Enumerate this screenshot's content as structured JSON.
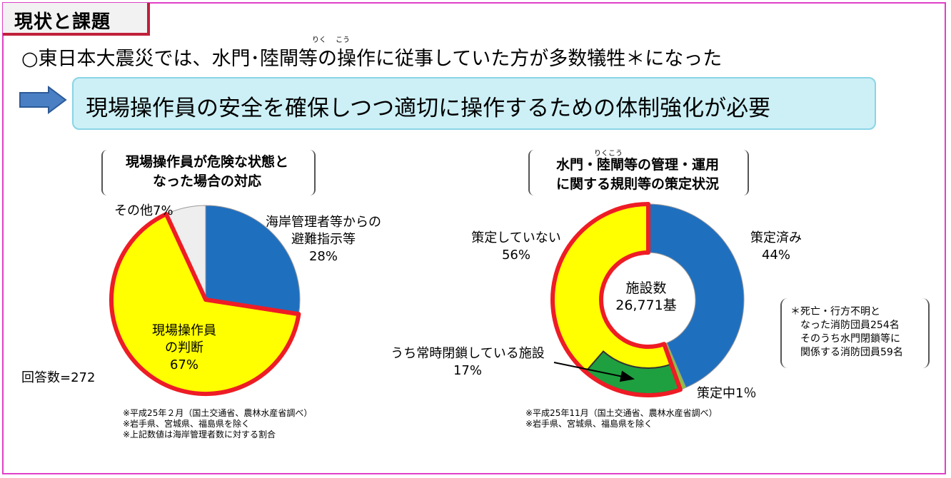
{
  "header": {
    "title": "現状と課題",
    "headline": "○東日本大震災では、水門･陸閘等の操作に従事していた方が多数犠牲＊になった",
    "ruby_riku": "りく",
    "ruby_kou": "こう",
    "callout": "現場操作員の安全を確保しつつ適切に操作するための体制強化が必要"
  },
  "colors": {
    "blue": "#1f6fbf",
    "yellow": "#ffff00",
    "light_gray": "#eeeeee",
    "green": "#1fa040",
    "highlight_red": "#ee1c25",
    "callout_bg": "#ccf0f6",
    "arrow": "#4a7fc4"
  },
  "chart_data": [
    {
      "type": "pie",
      "title_line1": "現場操作員が危険な状態と",
      "title_line2": "なった場合の対応",
      "slices": [
        {
          "label_line1": "海岸管理者等からの",
          "label_line2": "避難指示等",
          "pct_label": "28%",
          "value": 28,
          "color": "#1f6fbf"
        },
        {
          "label_line1": "現場操作員",
          "label_line2": "の判断",
          "pct_label": "67%",
          "value": 67,
          "color": "#ffff00",
          "highlighted": true
        },
        {
          "label_line1": "その他7%",
          "value": 7,
          "color": "#eeeeee"
        }
      ],
      "annotation": "回答数=272",
      "notes": [
        "※平成25年２月（国土交通省、農林水産省調べ）",
        "※岩手県、宮城県、福島県を除く",
        "※上記数値は海岸管理者数に対する割合"
      ]
    },
    {
      "type": "donut",
      "title_line1": "水門・陸閘等の管理・運用",
      "title_line2": "に関する規則等の策定状況",
      "ruby_rikukou": "りくこう",
      "center_line1": "施設数",
      "center_line2": "26,771基",
      "slices": [
        {
          "label_line1": "策定済み",
          "pct_label": "44%",
          "value": 44,
          "color": "#1f6fbf"
        },
        {
          "label_line1": "策定中1％",
          "value": 1,
          "color": "#8cbf3f"
        },
        {
          "label_line1": "策定していない",
          "pct_label": "56%",
          "value": 56,
          "color": "#ffff00",
          "highlighted": true
        }
      ],
      "sub_slice": {
        "label_line1": "うち常時閉鎖している施設",
        "pct_label": "17%",
        "value": 17,
        "color": "#1fa040"
      },
      "notes": [
        "※平成25年11月（国土交通省、農林水産省調べ）",
        "※岩手県、宮城県、福島県を除く"
      ]
    }
  ],
  "footnote": {
    "line1": "＊死亡・行方不明と",
    "line2": "　なった消防団員254名",
    "line3": "　そのうち水門閉鎖等に",
    "line4": "　関係する消防団員59名"
  }
}
